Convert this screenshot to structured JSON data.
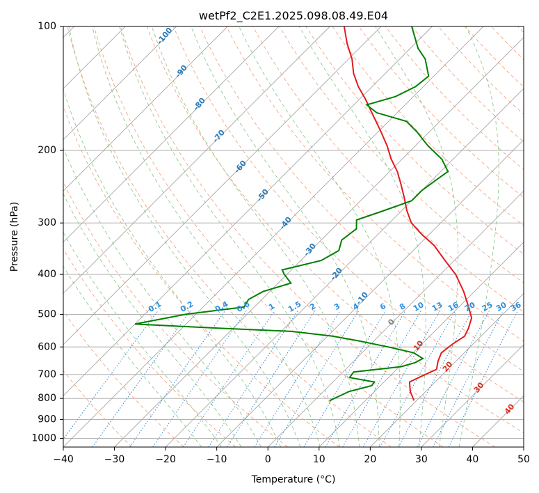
{
  "chart_data": {
    "type": "line",
    "subtype": "skew-t log-p diagram",
    "title": "wetPf2_C2E1.2025.098.08.49.E04",
    "xlabel": "Temperature (°C)",
    "ylabel": "Pressure (hPa)",
    "xlim": [
      -40,
      50
    ],
    "ylim": [
      1050,
      100
    ],
    "y_scale": "log",
    "grid": true,
    "x_ticks": [
      "−40",
      "−30",
      "−20",
      "−10",
      "0",
      "10",
      "20",
      "30",
      "40",
      "50"
    ],
    "y_ticks": [
      "100",
      "200",
      "300",
      "400",
      "500",
      "600",
      "700",
      "800",
      "900",
      "1000"
    ],
    "colors": {
      "temperature": "#e41a1c",
      "dewpoint": "#008000",
      "isotherm": "#a6a6a6",
      "dry_adiabat": "#f4a582",
      "moist_adiabat": "#8fc98f",
      "mixing_ratio": "#4292d6",
      "dry_label": "#d7301f",
      "moist_label": "#2c7bb6",
      "mix_label": "#2f8fe0"
    },
    "series": [
      {
        "key": "temperature",
        "points": [
          {
            "p": 810,
            "t": 19.5
          },
          {
            "p": 770,
            "t": 17.0
          },
          {
            "p": 730,
            "t": 15.0
          },
          {
            "p": 705,
            "t": 16.3
          },
          {
            "p": 680,
            "t": 17.8
          },
          {
            "p": 650,
            "t": 16.5
          },
          {
            "p": 620,
            "t": 15.5
          },
          {
            "p": 590,
            "t": 16.0
          },
          {
            "p": 565,
            "t": 16.8
          },
          {
            "p": 540,
            "t": 16.0
          },
          {
            "p": 510,
            "t": 14.6
          },
          {
            "p": 480,
            "t": 11.9
          },
          {
            "p": 440,
            "t": 7.9
          },
          {
            "p": 400,
            "t": 3.0
          },
          {
            "p": 370,
            "t": -1.8
          },
          {
            "p": 340,
            "t": -6.9
          },
          {
            "p": 320,
            "t": -11.4
          },
          {
            "p": 300,
            "t": -15.7
          },
          {
            "p": 280,
            "t": -19.0
          },
          {
            "p": 260,
            "t": -22.1
          },
          {
            "p": 240,
            "t": -25.6
          },
          {
            "p": 225,
            "t": -28.5
          },
          {
            "p": 210,
            "t": -32.1
          },
          {
            "p": 195,
            "t": -35.5
          },
          {
            "p": 180,
            "t": -39.5
          },
          {
            "p": 165,
            "t": -44.0
          },
          {
            "p": 150,
            "t": -48.9
          },
          {
            "p": 140,
            "t": -52.7
          },
          {
            "p": 130,
            "t": -56.2
          },
          {
            "p": 120,
            "t": -59.3
          },
          {
            "p": 110,
            "t": -63.3
          },
          {
            "p": 100,
            "t": -67.2
          }
        ]
      },
      {
        "key": "dewpoint",
        "points": [
          {
            "p": 810,
            "t": 3.0
          },
          {
            "p": 790,
            "t": 4.0
          },
          {
            "p": 770,
            "t": 5.0
          },
          {
            "p": 745,
            "t": 8.3
          },
          {
            "p": 730,
            "t": 8.1
          },
          {
            "p": 712,
            "t": 2.4
          },
          {
            "p": 690,
            "t": 2.1
          },
          {
            "p": 670,
            "t": 10.3
          },
          {
            "p": 655,
            "t": 12.3
          },
          {
            "p": 640,
            "t": 13.0
          },
          {
            "p": 620,
            "t": 10.1
          },
          {
            "p": 600,
            "t": 4.0
          },
          {
            "p": 580,
            "t": -3.0
          },
          {
            "p": 565,
            "t": -9.0
          },
          {
            "p": 550,
            "t": -18.0
          },
          {
            "p": 540,
            "t": -33.0
          },
          {
            "p": 528,
            "t": -50.0
          },
          {
            "p": 500,
            "t": -42.0
          },
          {
            "p": 480,
            "t": -32.0
          },
          {
            "p": 460,
            "t": -32.6
          },
          {
            "p": 440,
            "t": -31.3
          },
          {
            "p": 420,
            "t": -27.5
          },
          {
            "p": 400,
            "t": -30.5
          },
          {
            "p": 390,
            "t": -31.8
          },
          {
            "p": 370,
            "t": -26.0
          },
          {
            "p": 350,
            "t": -24.5
          },
          {
            "p": 330,
            "t": -26.0
          },
          {
            "p": 310,
            "t": -25.3
          },
          {
            "p": 295,
            "t": -27.0
          },
          {
            "p": 280,
            "t": -23.5
          },
          {
            "p": 265,
            "t": -20.0
          },
          {
            "p": 250,
            "t": -20.0
          },
          {
            "p": 235,
            "t": -19.2
          },
          {
            "p": 225,
            "t": -18.6
          },
          {
            "p": 210,
            "t": -22.2
          },
          {
            "p": 195,
            "t": -27.5
          },
          {
            "p": 180,
            "t": -32.5
          },
          {
            "p": 170,
            "t": -36.5
          },
          {
            "p": 162,
            "t": -44.0
          },
          {
            "p": 155,
            "t": -47.5
          },
          {
            "p": 148,
            "t": -43.5
          },
          {
            "p": 140,
            "t": -41.5
          },
          {
            "p": 132,
            "t": -41.0
          },
          {
            "p": 120,
            "t": -45.0
          },
          {
            "p": 113,
            "t": -48.5
          },
          {
            "p": 100,
            "t": -54.0
          }
        ]
      }
    ],
    "moist_adiabat_labels": [
      "-100",
      "-90",
      "-80",
      "-70",
      "-60",
      "-50",
      "-40",
      "-30",
      "-20",
      "-10"
    ],
    "dry_adiabat_labels": [
      "0",
      "10",
      "20",
      "30",
      "40"
    ],
    "mixing_ratio_labels": [
      "0.1",
      "0.2",
      "0.4",
      "0.6",
      "1",
      "1.5",
      "2",
      "3",
      "4",
      "6",
      "8",
      "10",
      "13",
      "16",
      "20",
      "25",
      "30",
      "36"
    ]
  }
}
